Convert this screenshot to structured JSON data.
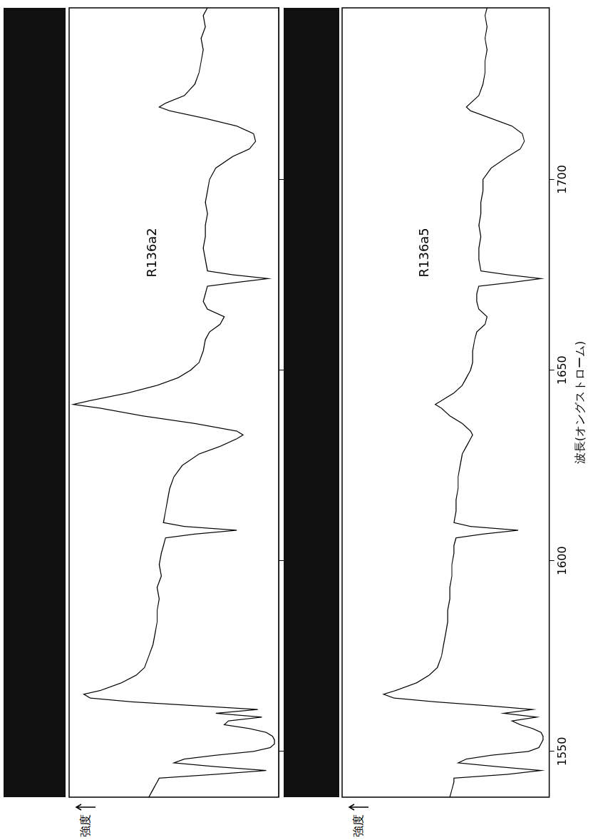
{
  "chart_data": [
    {
      "type": "line",
      "title": "R136a2",
      "y_label": "強度",
      "x": [
        1538,
        1540,
        1542,
        1543,
        1544,
        1545,
        1546,
        1547,
        1548,
        1549,
        1550,
        1551,
        1552,
        1553,
        1554,
        1555,
        1556,
        1557,
        1558,
        1559,
        1560,
        1561,
        1562,
        1563,
        1564,
        1565,
        1566,
        1568,
        1570,
        1572,
        1575,
        1578,
        1581,
        1584,
        1587,
        1590,
        1593,
        1596,
        1599,
        1602,
        1604,
        1606,
        1607,
        1608,
        1609,
        1610,
        1613,
        1616,
        1619,
        1622,
        1625,
        1628,
        1630,
        1632,
        1633,
        1634,
        1636,
        1638,
        1640,
        1641,
        1642,
        1644,
        1646,
        1648,
        1650,
        1652,
        1655,
        1658,
        1660,
        1662,
        1664,
        1666,
        1668,
        1670,
        1672,
        1673,
        1674,
        1675,
        1676,
        1679,
        1682,
        1685,
        1688,
        1691,
        1694,
        1697,
        1700,
        1703,
        1706,
        1708,
        1710,
        1712,
        1714,
        1716,
        1718,
        1719,
        1720,
        1722,
        1725,
        1728,
        1731,
        1734,
        1737,
        1740,
        1743,
        1745
      ],
      "values": [
        62,
        60,
        58,
        57,
        30,
        6,
        30,
        50,
        45,
        30,
        12,
        4,
        2,
        2,
        3,
        6,
        14,
        26,
        24,
        8,
        30,
        10,
        40,
        70,
        90,
        93,
        85,
        75,
        68,
        64,
        62,
        60,
        59,
        58,
        58,
        57,
        58,
        56,
        57,
        56,
        55,
        54,
        40,
        20,
        45,
        55,
        54,
        53,
        52,
        50,
        46,
        38,
        28,
        20,
        17,
        20,
        40,
        65,
        85,
        98,
        90,
        72,
        58,
        48,
        42,
        38,
        36,
        35,
        33,
        28,
        26,
        34,
        36,
        35,
        34,
        20,
        5,
        22,
        34,
        35,
        36,
        35,
        35,
        34,
        35,
        34,
        33,
        30,
        22,
        14,
        11,
        12,
        20,
        35,
        52,
        57,
        54,
        45,
        40,
        38,
        37,
        36,
        37,
        35,
        36,
        34
      ],
      "color": "#000000",
      "xlim": [
        1538,
        1745
      ],
      "xticks": [
        1550,
        1600,
        1650,
        1700
      ],
      "ylim": [
        0,
        100
      ],
      "tick_labels": false,
      "grid": false
    },
    {
      "type": "line",
      "title": "R136a5",
      "y_label": "強度",
      "x_label": "波長(オングストローム)",
      "x": [
        1538,
        1540,
        1542,
        1543,
        1544,
        1545,
        1546,
        1547,
        1548,
        1549,
        1550,
        1551,
        1552,
        1553,
        1554,
        1555,
        1556,
        1557,
        1558,
        1559,
        1560,
        1561,
        1562,
        1563,
        1564,
        1565,
        1566,
        1568,
        1570,
        1572,
        1575,
        1578,
        1581,
        1584,
        1587,
        1590,
        1593,
        1596,
        1599,
        1602,
        1604,
        1606,
        1607,
        1608,
        1609,
        1610,
        1613,
        1616,
        1619,
        1622,
        1625,
        1628,
        1630,
        1632,
        1633,
        1634,
        1636,
        1638,
        1640,
        1641,
        1642,
        1644,
        1646,
        1648,
        1650,
        1652,
        1655,
        1658,
        1660,
        1662,
        1664,
        1666,
        1668,
        1670,
        1672,
        1673,
        1674,
        1675,
        1676,
        1679,
        1682,
        1685,
        1688,
        1691,
        1694,
        1697,
        1700,
        1703,
        1706,
        1708,
        1710,
        1712,
        1714,
        1716,
        1718,
        1719,
        1720,
        1722,
        1725,
        1728,
        1731,
        1734,
        1737,
        1740,
        1743,
        1745
      ],
      "values": [
        48,
        47,
        46,
        46,
        20,
        4,
        25,
        44,
        40,
        28,
        10,
        5,
        4,
        3,
        3,
        4,
        8,
        14,
        18,
        6,
        22,
        8,
        30,
        55,
        75,
        80,
        74,
        64,
        58,
        54,
        52,
        51,
        50,
        49,
        49,
        48,
        48,
        47,
        47,
        46,
        46,
        45,
        32,
        15,
        38,
        46,
        45,
        45,
        44,
        44,
        43,
        42,
        40,
        38,
        37,
        38,
        42,
        48,
        52,
        55,
        52,
        46,
        42,
        40,
        38,
        37,
        37,
        36,
        35,
        31,
        30,
        34,
        35,
        35,
        34,
        18,
        4,
        20,
        33,
        34,
        34,
        33,
        34,
        33,
        33,
        32,
        32,
        28,
        20,
        14,
        12,
        13,
        18,
        28,
        38,
        40,
        38,
        34,
        32,
        31,
        31,
        30,
        31,
        30,
        31,
        30
      ],
      "color": "#000000",
      "xlim": [
        1538,
        1745
      ],
      "xticks": [
        1550,
        1600,
        1650,
        1700
      ],
      "ylim": [
        0,
        100
      ],
      "tick_labels": "x",
      "grid": false
    }
  ]
}
